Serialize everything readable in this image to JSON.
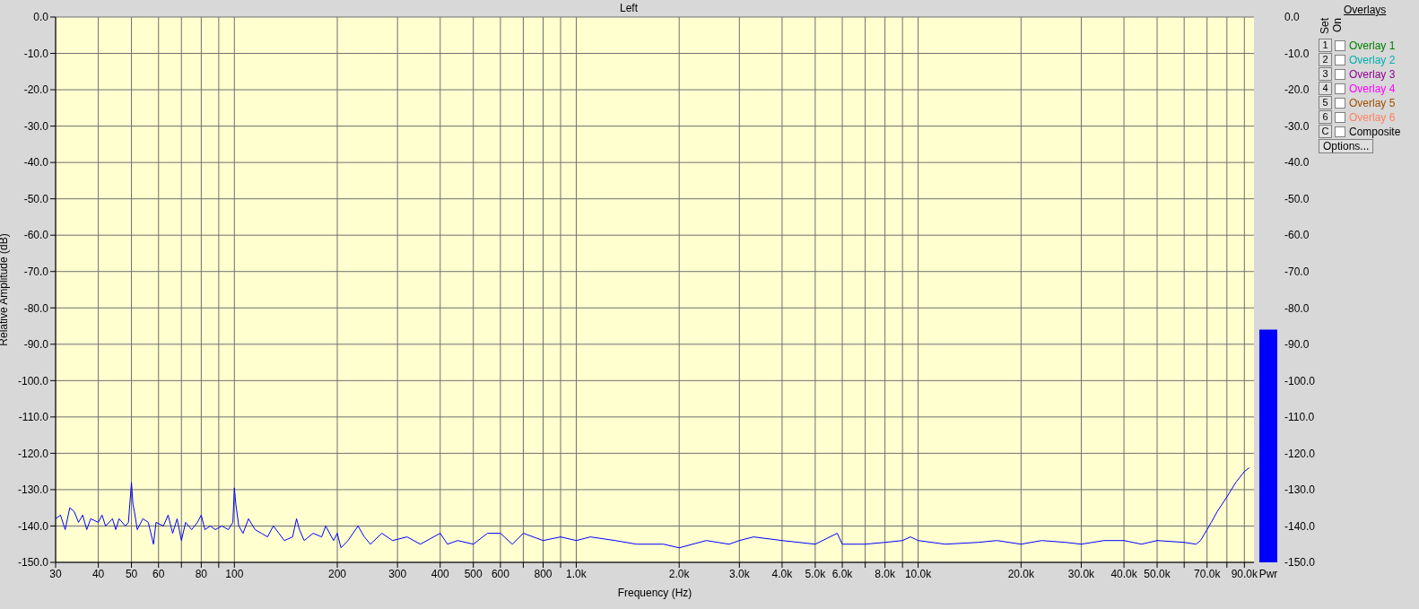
{
  "chart_data": [
    {
      "type": "line",
      "title": "Left",
      "xlabel": "Frequency (Hz)",
      "ylabel": "Relative Amplitude (dB)",
      "log": "x",
      "grid": true,
      "xlim": [
        30,
        96000
      ],
      "xticks": [
        30,
        40,
        50,
        60,
        {
          "value": 70,
          "label": null
        },
        80,
        {
          "value": 90,
          "label": null
        },
        100,
        200,
        300,
        400,
        500,
        600,
        {
          "value": 700,
          "label": null
        },
        800,
        {
          "value": 900,
          "label": null
        },
        {
          "value": 1000,
          "label": "1.0k"
        },
        {
          "value": 2000,
          "label": "2.0k"
        },
        {
          "value": 3000,
          "label": "3.0k"
        },
        {
          "value": 4000,
          "label": "4.0k"
        },
        {
          "value": 5000,
          "label": "5.0k"
        },
        {
          "value": 6000,
          "label": "6.0k"
        },
        {
          "value": 7000,
          "label": null
        },
        {
          "value": 8000,
          "label": "8.0k"
        },
        {
          "value": 9000,
          "label": null
        },
        {
          "value": 10000,
          "label": "10.0k"
        },
        {
          "value": 20000,
          "label": "20.0k"
        },
        {
          "value": 30000,
          "label": "30.0k"
        },
        {
          "value": 40000,
          "label": "40.0k"
        },
        {
          "value": 50000,
          "label": "50.0k"
        },
        {
          "value": 60000,
          "label": null
        },
        {
          "value": 70000,
          "label": "70.0k"
        },
        {
          "value": 80000,
          "label": null
        },
        {
          "value": 90000,
          "label": "90.0k"
        }
      ],
      "ylim": [
        -150,
        0
      ],
      "yticks": [
        {
          "value": 0,
          "label": "0.0"
        },
        {
          "value": -10,
          "label": "-10.0"
        },
        {
          "value": -20,
          "label": "-20.0"
        },
        {
          "value": -30,
          "label": "-30.0"
        },
        {
          "value": -40,
          "label": "-40.0"
        },
        {
          "value": -50,
          "label": "-50.0"
        },
        {
          "value": -60,
          "label": "-60.0"
        },
        {
          "value": -70,
          "label": "-70.0"
        },
        {
          "value": -80,
          "label": "-80.0"
        },
        {
          "value": -90,
          "label": "-90.0"
        },
        {
          "value": -100,
          "label": "-100.0"
        },
        {
          "value": -110,
          "label": "-110.0"
        },
        {
          "value": -120,
          "label": "-120.0"
        },
        {
          "value": -130,
          "label": "-130.0"
        },
        {
          "value": -140,
          "label": "-140.0"
        },
        {
          "value": -150,
          "label": "-150.0"
        }
      ],
      "annotations": [
        "Overlays",
        "Set",
        "On",
        "Overlay 1",
        "Overlay 2",
        "Overlay 3",
        "Overlay 4",
        "Overlay 5",
        "Overlay 6",
        "Composite",
        "Options...",
        "1",
        "2",
        "3",
        "4",
        "5",
        "6",
        "C"
      ],
      "series": [
        {
          "color": "#0000ff",
          "x": [
            30,
            31,
            32,
            33,
            34,
            35,
            36,
            37,
            38,
            40,
            41,
            42,
            44,
            45,
            46,
            48,
            49,
            50,
            50.5,
            51,
            52,
            54,
            56,
            58,
            59,
            62,
            64,
            66,
            68,
            70,
            72,
            75,
            78,
            80,
            82,
            85,
            88,
            92,
            96,
            99,
            100,
            101,
            103,
            106,
            110,
            115,
            120,
            125,
            130,
            135,
            140,
            148,
            152,
            155,
            160,
            170,
            180,
            185,
            195,
            200,
            205,
            215,
            230,
            240,
            250,
            270,
            290,
            320,
            350,
            400,
            420,
            450,
            500,
            550,
            600,
            650,
            700,
            800,
            900,
            1000,
            1100,
            1300,
            1500,
            1800,
            2000,
            2400,
            2800,
            3000,
            3300,
            4000,
            5000,
            5800,
            6000,
            7000,
            8000,
            9000,
            9500,
            10000,
            12000,
            15000,
            17000,
            20000,
            23000,
            27000,
            30000,
            35000,
            40000,
            45000,
            50000,
            60000,
            65000,
            67000,
            70000,
            72000,
            75000,
            80000,
            85000,
            90000,
            93000
          ],
          "values": [
            -138,
            -137,
            -141,
            -135,
            -136,
            -139,
            -137,
            -141,
            -138,
            -139,
            -137,
            -140,
            -138,
            -141,
            -138,
            -140,
            -139,
            -128,
            -134,
            -136,
            -141,
            -138,
            -139,
            -145,
            -139,
            -140,
            -137,
            -142,
            -138,
            -144,
            -139,
            -141,
            -139,
            -137,
            -141,
            -140,
            -141,
            -140,
            -141,
            -139,
            -129.5,
            -134,
            -140,
            -142,
            -138,
            -141,
            -142,
            -143,
            -140,
            -142,
            -144,
            -143,
            -138,
            -141,
            -144,
            -142,
            -143,
            -140,
            -144,
            -142,
            -146,
            -144,
            -140,
            -143,
            -145,
            -142,
            -144,
            -143,
            -145,
            -142,
            -145,
            -144,
            -145,
            -142,
            -142,
            -145,
            -142,
            -144,
            -143,
            -144,
            -143,
            -144,
            -145,
            -145,
            -146,
            -144,
            -145,
            -144,
            -143,
            -144,
            -145,
            -142,
            -145,
            -145,
            -144.5,
            -144,
            -143,
            -144,
            -145,
            -144.5,
            -144,
            -145,
            -144,
            -144.5,
            -145,
            -144,
            -144,
            -145,
            -144,
            -144.5,
            -145,
            -144,
            -141,
            -139,
            -136,
            -132,
            -128,
            -125,
            -124
          ]
        }
      ]
    },
    {
      "type": "bar",
      "categories": [
        "Pwr"
      ],
      "base": [
        -150
      ],
      "values": [
        64
      ],
      "color": "#0000ff",
      "ylim": [
        -150,
        0
      ],
      "yticks": [
        {
          "value": 0,
          "label": "0.0"
        },
        {
          "value": -10,
          "label": "-10.0"
        },
        {
          "value": -20,
          "label": "-20.0"
        },
        {
          "value": -30,
          "label": "-30.0"
        },
        {
          "value": -40,
          "label": "-40.0"
        },
        {
          "value": -50,
          "label": "-50.0"
        },
        {
          "value": -60,
          "label": "-60.0"
        },
        {
          "value": -70,
          "label": "-70.0"
        },
        {
          "value": -80,
          "label": "-80.0"
        },
        {
          "value": -90,
          "label": "-90.0"
        },
        {
          "value": -100,
          "label": "-100.0"
        },
        {
          "value": -110,
          "label": "-110.0"
        },
        {
          "value": -120,
          "label": "-120.0"
        },
        {
          "value": -130,
          "label": "-130.0"
        },
        {
          "value": -140,
          "label": "-140.0"
        },
        {
          "value": -150,
          "label": "-150.0"
        }
      ]
    }
  ]
}
